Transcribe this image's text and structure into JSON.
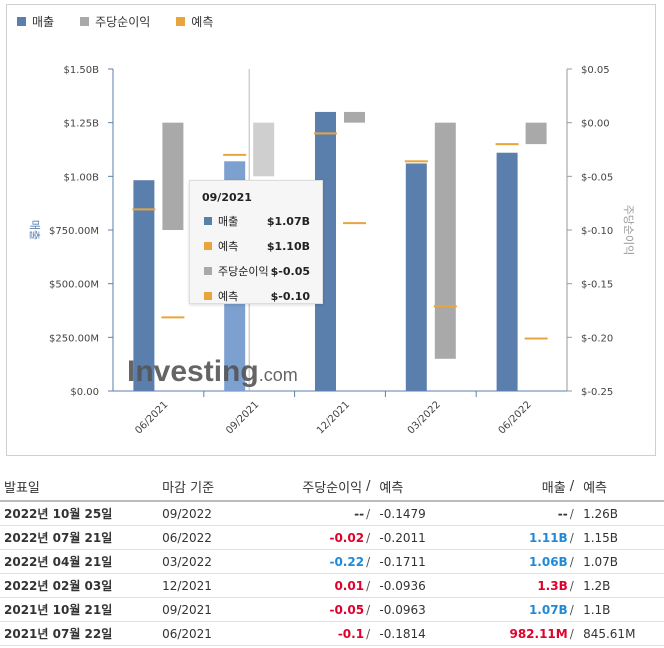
{
  "legend": {
    "revenue": "매출",
    "eps": "주당순이익",
    "forecast": "예측"
  },
  "colors": {
    "revenue": "#5b7fad",
    "eps": "#a9a9a9",
    "forecast": "#e8a53c",
    "neg": "#e0002b",
    "pos": "#1f8ad9"
  },
  "chart_data": {
    "type": "bar",
    "categories": [
      "06/2021",
      "09/2021",
      "12/2021",
      "03/2022",
      "06/2022"
    ],
    "ylabel_left": "매출",
    "ylabel_right": "주당순이익",
    "left_ticks": [
      "$1.50B",
      "$1.25B",
      "$1.00B",
      "$750.00M",
      "$500.00M",
      "$250.00M",
      "$0.00"
    ],
    "right_ticks": [
      "$0.05",
      "$0.00",
      "$-0.05",
      "$-0.10",
      "$-0.15",
      "$-0.20",
      "$-0.25"
    ],
    "left_range": [
      0,
      1.5
    ],
    "right_range": [
      -0.25,
      0.05
    ],
    "series": [
      {
        "name": "매출",
        "values": [
          0.982,
          1.07,
          1.3,
          1.06,
          1.11
        ]
      },
      {
        "name": "매출 예측",
        "values": [
          0.846,
          1.1,
          1.2,
          1.07,
          1.15
        ]
      },
      {
        "name": "주당순이익",
        "values": [
          -0.1,
          -0.05,
          0.01,
          -0.22,
          -0.02
        ]
      },
      {
        "name": "주당순이익 예측",
        "values": [
          -0.1814,
          -0.0963,
          -0.0936,
          -0.1711,
          -0.2011
        ]
      }
    ]
  },
  "tooltip": {
    "title": "09/2021",
    "rows": [
      {
        "label": "매출",
        "value": "$1.07B"
      },
      {
        "label": "예측",
        "value": "$1.10B"
      },
      {
        "label": "주당순이익",
        "value": "$-0.05"
      },
      {
        "label": "예측",
        "value": "$-0.10"
      }
    ]
  },
  "watermark": {
    "brand": "Investing",
    "suffix": ".com"
  },
  "table": {
    "headers": {
      "date": "발표일",
      "period": "마감 기준",
      "eps": "주당순이익",
      "slash1": "/",
      "eps_fc": "예측",
      "rev": "매출",
      "slash2": "/",
      "rev_fc": "예측"
    },
    "rows": [
      {
        "date": "2022년 10월 25일",
        "period": "09/2022",
        "eps": "--",
        "eps_fc": "-0.1479",
        "rev": "--",
        "rev_fc": "1.26B",
        "eps_cls": "neu",
        "rev_cls": "neu"
      },
      {
        "date": "2022년 07월 21일",
        "period": "06/2022",
        "eps": "-0.02",
        "eps_fc": "-0.2011",
        "rev": "1.11B",
        "rev_fc": "1.15B",
        "eps_cls": "neg",
        "rev_cls": "pos"
      },
      {
        "date": "2022년 04월 21일",
        "period": "03/2022",
        "eps": "-0.22",
        "eps_fc": "-0.1711",
        "rev": "1.06B",
        "rev_fc": "1.07B",
        "eps_cls": "pos",
        "rev_cls": "pos"
      },
      {
        "date": "2022년 02월 03일",
        "period": "12/2021",
        "eps": "0.01",
        "eps_fc": "-0.0936",
        "rev": "1.3B",
        "rev_fc": "1.2B",
        "eps_cls": "neg",
        "rev_cls": "neg"
      },
      {
        "date": "2021년 10월 21일",
        "period": "09/2021",
        "eps": "-0.05",
        "eps_fc": "-0.0963",
        "rev": "1.07B",
        "rev_fc": "1.1B",
        "eps_cls": "neg",
        "rev_cls": "pos"
      },
      {
        "date": "2021년 07월 22일",
        "period": "06/2021",
        "eps": "-0.1",
        "eps_fc": "-0.1814",
        "rev": "982.11M",
        "rev_fc": "845.61M",
        "eps_cls": "neg",
        "rev_cls": "neg"
      }
    ]
  }
}
